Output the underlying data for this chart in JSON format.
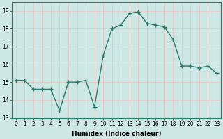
{
  "x": [
    0,
    1,
    2,
    3,
    4,
    5,
    6,
    7,
    8,
    9,
    10,
    11,
    12,
    13,
    14,
    15,
    16,
    17,
    18,
    19,
    20,
    21,
    22,
    23
  ],
  "y": [
    15.1,
    15.1,
    14.6,
    14.6,
    14.6,
    13.4,
    15.0,
    15.0,
    15.1,
    13.6,
    16.5,
    18.0,
    18.2,
    18.85,
    18.95,
    18.3,
    18.2,
    18.1,
    17.4,
    15.9,
    15.9,
    15.8,
    15.9,
    15.5
  ],
  "line_color": "#2d7a6a",
  "marker": "+",
  "markersize": 4,
  "linewidth": 1.0,
  "xlabel": "Humidex (Indice chaleur)",
  "ylabel": "",
  "ylim": [
    13,
    19.5
  ],
  "xlim": [
    -0.5,
    23.5
  ],
  "yticks": [
    13,
    14,
    15,
    16,
    17,
    18,
    19
  ],
  "xticks": [
    0,
    1,
    2,
    3,
    4,
    5,
    6,
    7,
    8,
    9,
    10,
    11,
    12,
    13,
    14,
    15,
    16,
    17,
    18,
    19,
    20,
    21,
    22,
    23
  ],
  "background_color": "#cde8e4",
  "grid_color": "#e8c8c8",
  "label_fontsize": 6.5,
  "tick_fontsize": 5.5,
  "markeredgewidth": 1.0
}
